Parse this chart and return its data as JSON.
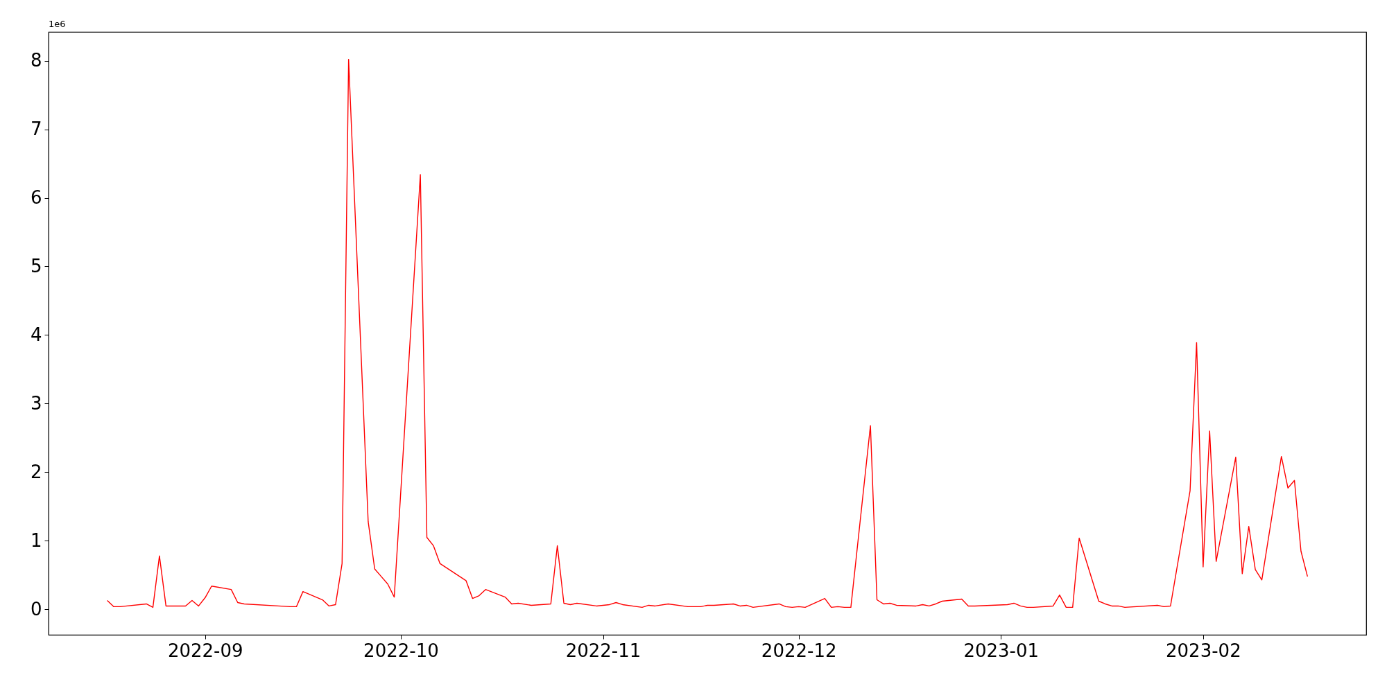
{
  "chart_data": {
    "type": "line",
    "x": [
      "2022-08-17",
      "2022-08-18",
      "2022-08-19",
      "2022-08-23",
      "2022-08-24",
      "2022-08-25",
      "2022-08-26",
      "2022-08-29",
      "2022-08-30",
      "2022-08-31",
      "2022-09-01",
      "2022-09-02",
      "2022-09-05",
      "2022-09-06",
      "2022-09-07",
      "2022-09-14",
      "2022-09-15",
      "2022-09-16",
      "2022-09-19",
      "2022-09-20",
      "2022-09-21",
      "2022-09-22",
      "2022-09-23",
      "2022-09-26",
      "2022-09-27",
      "2022-09-28",
      "2022-09-29",
      "2022-09-30",
      "2022-10-04",
      "2022-10-05",
      "2022-10-06",
      "2022-10-07",
      "2022-10-11",
      "2022-10-12",
      "2022-10-13",
      "2022-10-14",
      "2022-10-17",
      "2022-10-18",
      "2022-10-19",
      "2022-10-21",
      "2022-10-24",
      "2022-10-25",
      "2022-10-26",
      "2022-10-27",
      "2022-10-28",
      "2022-10-31",
      "2022-11-02",
      "2022-11-03",
      "2022-11-04",
      "2022-11-07",
      "2022-11-08",
      "2022-11-09",
      "2022-11-11",
      "2022-11-14",
      "2022-11-16",
      "2022-11-17",
      "2022-11-18",
      "2022-11-21",
      "2022-11-22",
      "2022-11-23",
      "2022-11-24",
      "2022-11-28",
      "2022-11-29",
      "2022-11-30",
      "2022-12-01",
      "2022-12-02",
      "2022-12-05",
      "2022-12-06",
      "2022-12-07",
      "2022-12-08",
      "2022-12-09",
      "2022-12-12",
      "2022-12-13",
      "2022-12-14",
      "2022-12-15",
      "2022-12-16",
      "2022-12-19",
      "2022-12-20",
      "2022-12-21",
      "2022-12-22",
      "2022-12-23",
      "2022-12-26",
      "2022-12-27",
      "2022-12-28",
      "2023-01-02",
      "2023-01-03",
      "2023-01-04",
      "2023-01-05",
      "2023-01-06",
      "2023-01-09",
      "2023-01-10",
      "2023-01-11",
      "2023-01-12",
      "2023-01-13",
      "2023-01-16",
      "2023-01-17",
      "2023-01-18",
      "2023-01-19",
      "2023-01-20",
      "2023-01-25",
      "2023-01-26",
      "2023-01-27",
      "2023-01-30",
      "2023-01-31",
      "2023-02-01",
      "2023-02-02",
      "2023-02-03",
      "2023-02-06",
      "2023-02-07",
      "2023-02-08",
      "2023-02-09",
      "2023-02-10",
      "2023-02-13",
      "2023-02-14",
      "2023-02-15",
      "2023-02-16",
      "2023-02-17"
    ],
    "series": [
      {
        "color": "#ff0000",
        "values": [
          0.13,
          0.04,
          0.04,
          0.08,
          0.03,
          0.78,
          0.05,
          0.05,
          0.13,
          0.05,
          0.17,
          0.34,
          0.29,
          0.1,
          0.08,
          0.04,
          0.04,
          0.26,
          0.14,
          0.05,
          0.07,
          0.67,
          8.02,
          1.28,
          0.59,
          0.48,
          0.37,
          0.18,
          6.34,
          1.05,
          0.93,
          0.67,
          0.42,
          0.16,
          0.2,
          0.29,
          0.18,
          0.08,
          0.09,
          0.06,
          0.08,
          0.93,
          0.09,
          0.07,
          0.09,
          0.05,
          0.07,
          0.1,
          0.07,
          0.03,
          0.06,
          0.05,
          0.08,
          0.04,
          0.04,
          0.06,
          0.06,
          0.08,
          0.05,
          0.06,
          0.03,
          0.08,
          0.04,
          0.03,
          0.04,
          0.03,
          0.16,
          0.03,
          0.04,
          0.03,
          0.03,
          2.68,
          0.14,
          0.08,
          0.09,
          0.06,
          0.05,
          0.07,
          0.05,
          0.08,
          0.12,
          0.15,
          0.05,
          0.05,
          0.07,
          0.09,
          0.05,
          0.03,
          0.03,
          0.05,
          0.21,
          0.03,
          0.03,
          1.04,
          0.12,
          0.08,
          0.05,
          0.05,
          0.03,
          0.06,
          0.04,
          0.05,
          1.73,
          3.89,
          0.62,
          2.6,
          0.7,
          2.22,
          0.52,
          1.21,
          0.58,
          0.43,
          2.23,
          1.77,
          1.88,
          0.85,
          0.48
        ]
      }
    ],
    "xlim": [
      "2022-08-08",
      "2023-02-26"
    ],
    "xticks": [
      "2022-09",
      "2022-10",
      "2022-11",
      "2022-12",
      "2023-01",
      "2023-02"
    ],
    "ylim": [
      -0.37,
      8.42
    ],
    "yticks": [
      0,
      1,
      2,
      3,
      4,
      5,
      6,
      7,
      8
    ],
    "annotations": [
      "1e6"
    ],
    "grid": false,
    "marker": "none",
    "line_style": "solid"
  }
}
